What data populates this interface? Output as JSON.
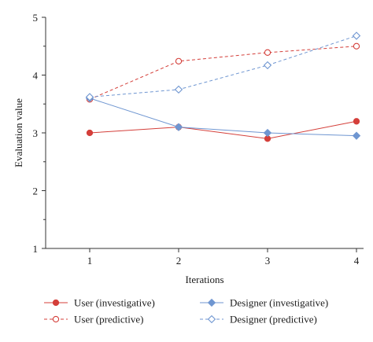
{
  "chart_data": {
    "type": "line",
    "xlabel": "Iterations",
    "ylabel": "Evaluation value",
    "categories": [
      1,
      2,
      3,
      4
    ],
    "x_ticks": [
      "1",
      "2",
      "3",
      "4"
    ],
    "y_ticks": [
      "1",
      "2",
      "3",
      "4",
      "5"
    ],
    "ylim": [
      1,
      5
    ],
    "grid": false,
    "legend_position": "bottom",
    "series": [
      {
        "name": "User (investigative)",
        "values": [
          3.0,
          3.1,
          2.9,
          3.2
        ],
        "color": "#d43f3a",
        "dashed": false,
        "marker": "circle",
        "filled": true
      },
      {
        "name": "User (predictive)",
        "values": [
          3.58,
          4.24,
          4.39,
          4.5
        ],
        "color": "#d43f3a",
        "dashed": true,
        "marker": "circle",
        "filled": false
      },
      {
        "name": "Designer (investigative)",
        "values": [
          3.6,
          3.1,
          3.0,
          2.95
        ],
        "color": "#6f96d1",
        "dashed": false,
        "marker": "diamond",
        "filled": true
      },
      {
        "name": "Designer (predictive)",
        "values": [
          3.62,
          3.75,
          4.17,
          4.68
        ],
        "color": "#6f96d1",
        "dashed": true,
        "marker": "diamond",
        "filled": false
      }
    ]
  }
}
